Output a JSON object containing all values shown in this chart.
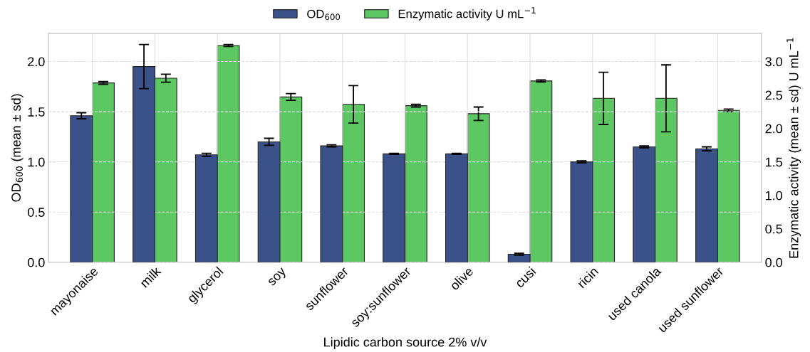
{
  "chart_data": {
    "type": "bar",
    "xlabel": "Lipidic carbon source 2% v/v",
    "ylabel": "OD$_{600}$ (mean ± sd)",
    "y2label": "Enzymatic activity (mean ± sd) U mL$^{−1}$",
    "categories": [
      "mayonaise",
      "milk",
      "glycerol",
      "soy",
      "sunflower",
      "soy:sunflower",
      "olive",
      "cusi",
      "ricin",
      "used canola",
      "used sunflower"
    ],
    "series": [
      {
        "name": "OD$_{600}$",
        "color": "#3b5189",
        "values": [
          1.46,
          1.95,
          1.07,
          1.2,
          1.16,
          1.08,
          1.08,
          0.08,
          1.0,
          1.15,
          1.13
        ],
        "errors": [
          0.03,
          0.22,
          0.015,
          0.035,
          0.01,
          0.005,
          0.005,
          0.01,
          0.01,
          0.01,
          0.02
        ]
      },
      {
        "name": "Enzymatic activity U mL$^{−1}$",
        "color": "#5dc863",
        "axis": "y2",
        "values": [
          2.68,
          2.75,
          3.24,
          2.47,
          2.36,
          2.34,
          2.22,
          2.71,
          2.45,
          2.45,
          2.27
        ],
        "errors": [
          0.02,
          0.06,
          0.015,
          0.05,
          0.28,
          0.02,
          0.1,
          0.015,
          0.39,
          0.5,
          0.02
        ]
      }
    ],
    "ylim": [
      0,
      2.28
    ],
    "yticks": [
      {
        "value": 0,
        "label": "0.0"
      },
      0.5,
      {
        "value": 1,
        "label": "1.0"
      },
      1.5,
      {
        "value": 2,
        "label": "2.0"
      }
    ],
    "y2lim": [
      0,
      3.42
    ],
    "y2ticks": [
      {
        "value": 0,
        "label": "0.0"
      },
      0.5,
      {
        "value": 1,
        "label": "1.0"
      },
      1.5,
      {
        "value": 2,
        "label": "2.0"
      },
      2.5,
      {
        "value": 3,
        "label": "3.0"
      }
    ],
    "grid": true,
    "legend": "top"
  }
}
